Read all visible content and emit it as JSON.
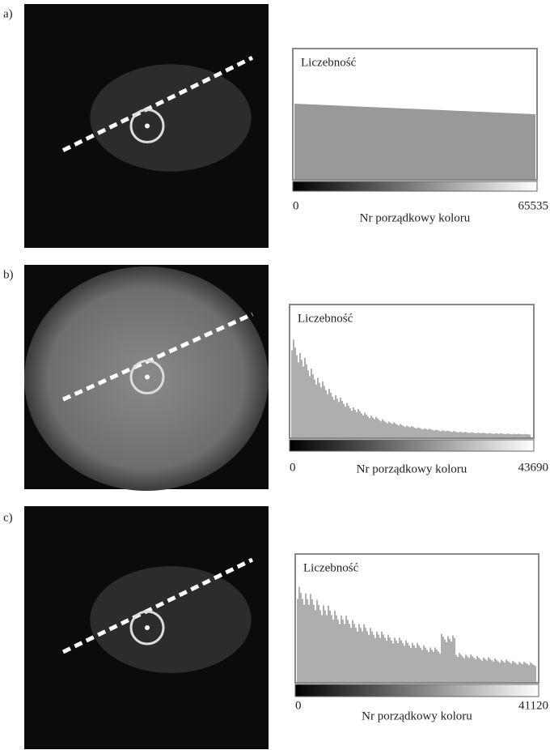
{
  "panels": [
    {
      "label": "a)",
      "y_axis_label": "Liczebność",
      "x_min": 0,
      "x_max": 65535,
      "x_axis_label": "Nr porządkowy koloru"
    },
    {
      "label": "b)",
      "y_axis_label": "Liczebność",
      "x_min": 0,
      "x_max": 43690,
      "x_axis_label": "Nr porządkowy koloru"
    },
    {
      "label": "c)",
      "y_axis_label": "Liczebność",
      "x_min": 0,
      "x_max": 41120,
      "x_axis_label": "Nr porządkowy koloru"
    }
  ]
}
